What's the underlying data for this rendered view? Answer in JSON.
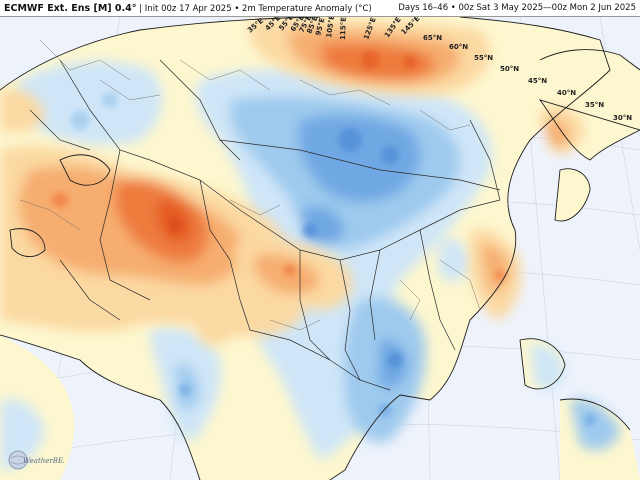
{
  "header": {
    "model": "ECMWF Ext. Ens [M] 0.4°",
    "init": "Init 00z 17 Apr 2025",
    "field": "2m Temperature Anomaly (°C)",
    "valid": "Days 16–46 • 00z Sat 3 May 2025—00z Mon 2 Jun 2025"
  },
  "latitude_labels": [
    "65°N",
    "60°N",
    "55°N",
    "50°N",
    "45°N",
    "40°N",
    "35°N",
    "30°N"
  ],
  "longitude_labels": [
    "35°E",
    "45°E",
    "55°E",
    "65°E",
    "75°E",
    "85°E",
    "95°E",
    "105°E",
    "115°E",
    "125°E",
    "135°E",
    "145°E"
  ],
  "logo": {
    "name": "WeatherBELL",
    "text": "WeatherBELL"
  },
  "colors": {
    "background": "#f2f4f8",
    "ocean": "#eef3fb",
    "neutral_land": "#fdf7cf",
    "warm_light": "#fbd9a2",
    "warm_mid": "#f6ad6f",
    "warm_strong": "#ee7b3c",
    "warm_core": "#e45a24",
    "cool_light": "#cfe6f8",
    "cool_mid": "#9fcaee",
    "cool_strong": "#6fa8e3",
    "cool_core": "#4e8ad6",
    "borders": "#2b2b2b"
  }
}
